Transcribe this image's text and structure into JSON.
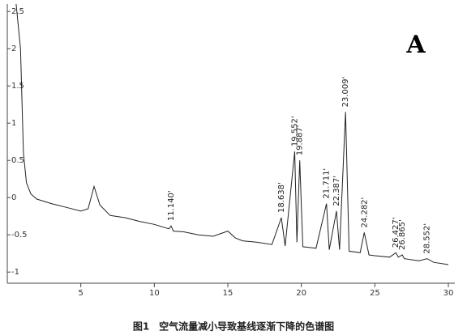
{
  "chart_data": {
    "type": "line",
    "panel_label": "A",
    "caption": "图1　空气流量减小导致基线逐渐下降的色谱图",
    "xlim": [
      0,
      30
    ],
    "ylim": [
      -1.15,
      2.6
    ],
    "xticks": [
      5,
      10,
      15,
      20,
      25,
      30
    ],
    "yticks": [
      2.5,
      2,
      1.5,
      1,
      0.5,
      0,
      -0.5,
      -1
    ],
    "series": [
      {
        "color": "#222222",
        "x": [
          0.6,
          0.9,
          1.1,
          1.3,
          1.6,
          2.0,
          3,
          4,
          5,
          5.5,
          5.9,
          6.3,
          7,
          8,
          9,
          10,
          11,
          11.14,
          11.3,
          12,
          13,
          14,
          15,
          15.5,
          16,
          17,
          18,
          18.64,
          18.9,
          19.55,
          19.7,
          19.89,
          20.1,
          21,
          21.71,
          21.9,
          22.39,
          22.6,
          23.01,
          23.25,
          24,
          24.28,
          24.6,
          25,
          26,
          26.43,
          26.6,
          26.87,
          27,
          28,
          28.55,
          29,
          30
        ],
        "values": [
          2.6,
          2.0,
          0.6,
          0.2,
          0.05,
          -0.02,
          -0.08,
          -0.13,
          -0.18,
          -0.15,
          0.15,
          -0.1,
          -0.24,
          -0.27,
          -0.32,
          -0.36,
          -0.42,
          -0.38,
          -0.45,
          -0.46,
          -0.5,
          -0.52,
          -0.45,
          -0.54,
          -0.58,
          -0.6,
          -0.63,
          -0.27,
          -0.65,
          0.62,
          -0.6,
          0.5,
          -0.66,
          -0.68,
          -0.08,
          -0.7,
          -0.18,
          -0.7,
          1.15,
          -0.72,
          -0.74,
          -0.47,
          -0.77,
          -0.78,
          -0.8,
          -0.74,
          -0.8,
          -0.77,
          -0.82,
          -0.85,
          -0.82,
          -0.87,
          -0.9
        ]
      }
    ],
    "peaks": [
      {
        "label": "11.140'",
        "x": 11.14
      },
      {
        "label": "18.638'",
        "x": 18.638
      },
      {
        "label": "19.552'",
        "x": 19.552
      },
      {
        "label": "19.887'",
        "x": 19.887
      },
      {
        "label": "21.711'",
        "x": 21.711
      },
      {
        "label": "22.387'",
        "x": 22.387
      },
      {
        "label": "23.009'",
        "x": 23.009
      },
      {
        "label": "24.282'",
        "x": 24.282
      },
      {
        "label": "26.427'",
        "x": 26.427
      },
      {
        "label": "26.865'",
        "x": 26.865
      },
      {
        "label": "28.552'",
        "x": 28.552
      }
    ]
  }
}
